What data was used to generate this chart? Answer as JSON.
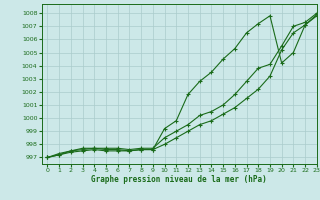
{
  "title": "Graphe pression niveau de la mer (hPa)",
  "bg_color": "#cce8e8",
  "grid_color": "#aacccc",
  "line_color": "#1a6b1a",
  "xlim": [
    -0.5,
    23
  ],
  "ylim": [
    996.5,
    1008.7
  ],
  "yticks": [
    997,
    998,
    999,
    1000,
    1001,
    1002,
    1003,
    1004,
    1005,
    1006,
    1007,
    1008
  ],
  "xticks": [
    0,
    1,
    2,
    3,
    4,
    5,
    6,
    7,
    8,
    9,
    10,
    11,
    12,
    13,
    14,
    15,
    16,
    17,
    18,
    19,
    20,
    21,
    22,
    23
  ],
  "series1": [
    997.0,
    997.2,
    997.4,
    997.5,
    997.6,
    997.5,
    997.5,
    997.5,
    997.6,
    997.6,
    998.0,
    998.5,
    999.0,
    999.5,
    999.8,
    1000.3,
    1000.8,
    1001.5,
    1002.2,
    1003.2,
    1005.2,
    1006.5,
    1007.1,
    1007.8
  ],
  "series2": [
    997.0,
    997.3,
    997.5,
    997.7,
    997.7,
    997.7,
    997.7,
    997.6,
    997.7,
    997.7,
    998.5,
    999.0,
    999.5,
    1000.2,
    1000.5,
    1001.0,
    1001.8,
    1002.8,
    1003.8,
    1004.1,
    1005.5,
    1007.0,
    1007.3,
    1008.0
  ],
  "series3": [
    997.0,
    997.2,
    997.5,
    997.6,
    997.7,
    997.6,
    997.6,
    997.5,
    997.6,
    997.6,
    999.2,
    999.8,
    1001.8,
    1002.8,
    1003.5,
    1004.5,
    1005.3,
    1006.5,
    1007.2,
    1007.8,
    1004.2,
    1005.0,
    1007.1,
    1007.9
  ]
}
